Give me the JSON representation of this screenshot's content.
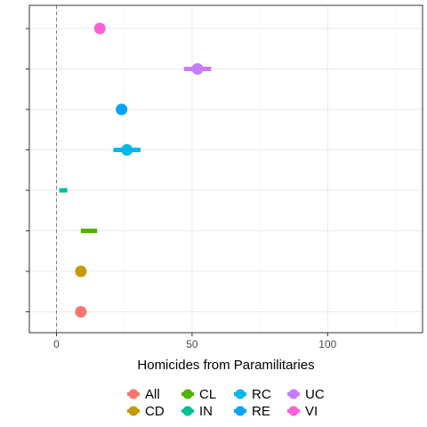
{
  "chart_data": {
    "type": "scatter",
    "title": "",
    "xlabel": "Homicides from Paramilitaries",
    "ylabel": "",
    "xlim": [
      -10,
      135
    ],
    "x_ticks": [
      0,
      50,
      100
    ],
    "x_tick_labels": [
      "0",
      "50",
      "100"
    ],
    "x_minor_ticks": [
      25,
      75,
      125
    ],
    "reference_line_x": 0,
    "grid": true,
    "legend_position": "bottom",
    "series": [
      {
        "name": "All",
        "x": 9,
        "low": 7,
        "high": 10,
        "color": "#F8766D"
      },
      {
        "name": "CD",
        "x": 9,
        "low": 8,
        "high": 10,
        "color": "#C49A00"
      },
      {
        "name": "CL",
        "x": null,
        "low": 9,
        "high": 15,
        "color": "#53B400"
      },
      {
        "name": "IN",
        "x": null,
        "low": 1,
        "high": 4,
        "color": "#00C094"
      },
      {
        "name": "RC",
        "x": 26,
        "low": 21,
        "high": 31,
        "color": "#00B6EB"
      },
      {
        "name": "RE",
        "x": 24,
        "low": 23,
        "high": 26,
        "color": "#06A4FF"
      },
      {
        "name": "UC",
        "x": 52,
        "low": 47,
        "high": 57,
        "color": "#C77CFF"
      },
      {
        "name": "VI",
        "x": 16,
        "low": 15,
        "high": 18,
        "color": "#FB61D7"
      }
    ],
    "row_order_top_to_bottom": [
      "VI",
      "UC",
      "RE",
      "RC",
      "IN",
      "CL",
      "CD",
      "All"
    ]
  }
}
